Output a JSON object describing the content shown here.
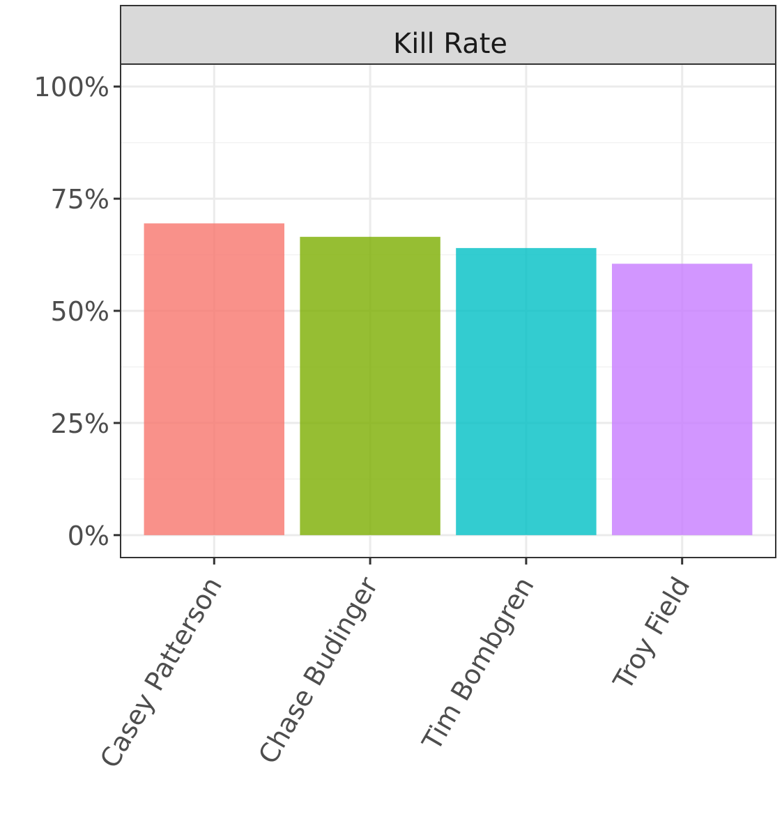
{
  "chart_data": {
    "type": "bar",
    "title": "Kill Rate",
    "categories": [
      "Casey Patterson",
      "Chase Budinger",
      "Tim Bombgren",
      "Troy Field"
    ],
    "values": [
      0.695,
      0.665,
      0.64,
      0.605
    ],
    "colors": [
      "#F8766D",
      "#7CAE00",
      "#00BFC4",
      "#C77CFF"
    ],
    "ylim": [
      -0.05,
      1.05
    ],
    "yticks": [
      0,
      0.25,
      0.5,
      0.75,
      1.0
    ],
    "ytick_labels": [
      "0%",
      "25%",
      "50%",
      "75%",
      "100%"
    ],
    "xlabel": "",
    "ylabel": "",
    "grid": true,
    "legend": "none"
  }
}
